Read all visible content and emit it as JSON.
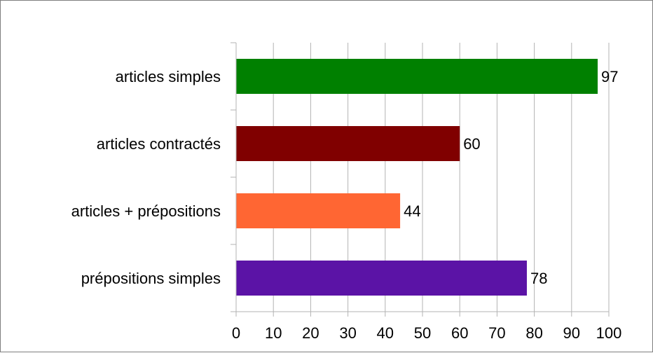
{
  "chart_data": {
    "type": "bar",
    "orientation": "horizontal",
    "title": "",
    "xlabel": "",
    "ylabel": "",
    "categories": [
      "articles simples",
      "articles contractés",
      "articles + prépositions",
      "prépositions simples"
    ],
    "values": [
      97,
      60,
      44,
      78
    ],
    "colors": [
      "#008000",
      "#800000",
      "#ff6633",
      "#5b13a6"
    ],
    "xlim": [
      0,
      100
    ],
    "xticks": [
      0,
      10,
      20,
      30,
      40,
      50,
      60,
      70,
      80,
      90,
      100
    ],
    "grid": "vertical",
    "data_labels": true,
    "legend": "none"
  }
}
